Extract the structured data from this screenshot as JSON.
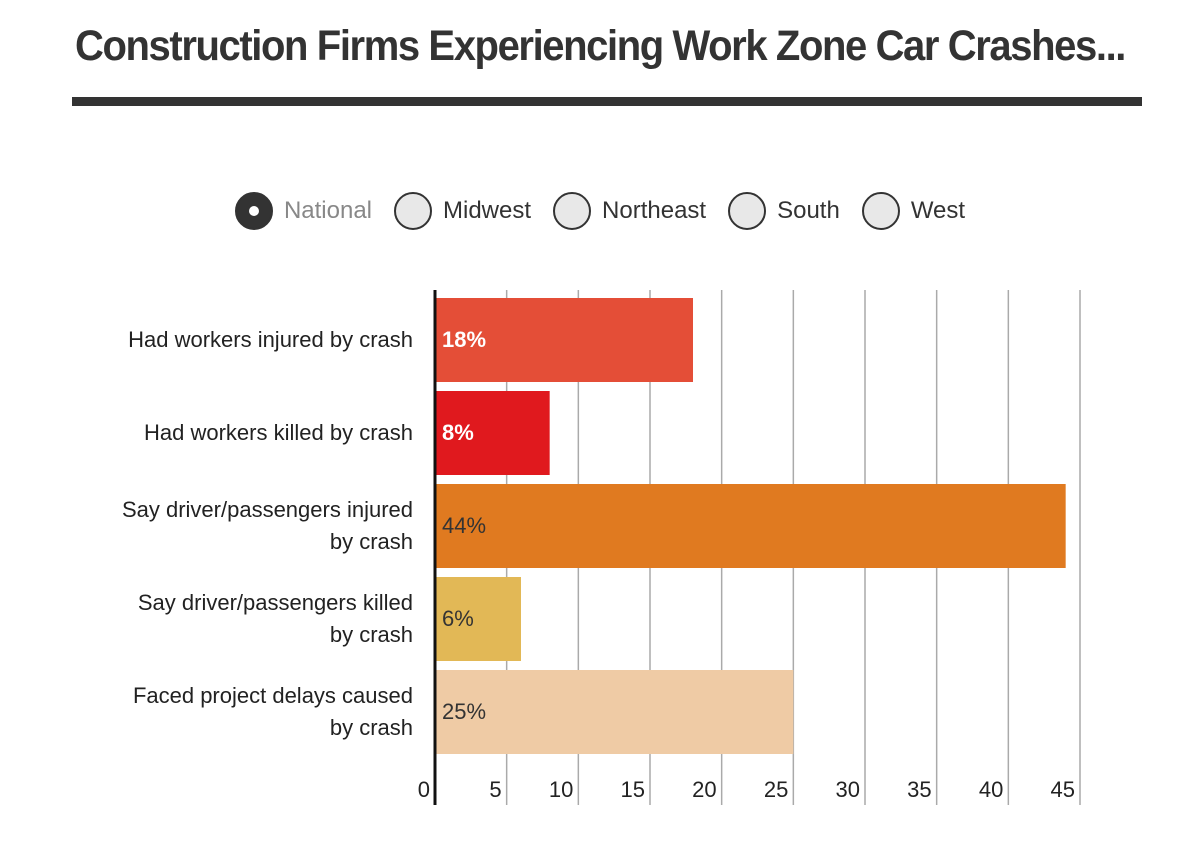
{
  "chart_data": {
    "type": "hbar",
    "title": "Construction Firms Experiencing Work Zone Car Crashes...",
    "filters": {
      "options": [
        "National",
        "Midwest",
        "Northeast",
        "South",
        "West"
      ],
      "selected": "National"
    },
    "categories": [
      "Had workers injured by crash",
      "Had workers killed by crash",
      "Say driver/passengers injured by crash",
      "Say driver/passengers killed by crash",
      "Faced project delays caused by crash"
    ],
    "values": [
      18,
      8,
      44,
      6,
      25
    ],
    "value_labels": [
      "18%",
      "8%",
      "44%",
      "6%",
      "25%"
    ],
    "colors": [
      "#e44e37",
      "#e0191e",
      "#e07a20",
      "#e2b856",
      "#efcba5"
    ],
    "label_colors": [
      "#ffffff",
      "#ffffff",
      "#333333",
      "#333333",
      "#333333"
    ],
    "xlim": [
      0,
      45
    ],
    "xticks": [
      0,
      5,
      10,
      15,
      20,
      25,
      30,
      35,
      40,
      45
    ],
    "grid": true
  }
}
